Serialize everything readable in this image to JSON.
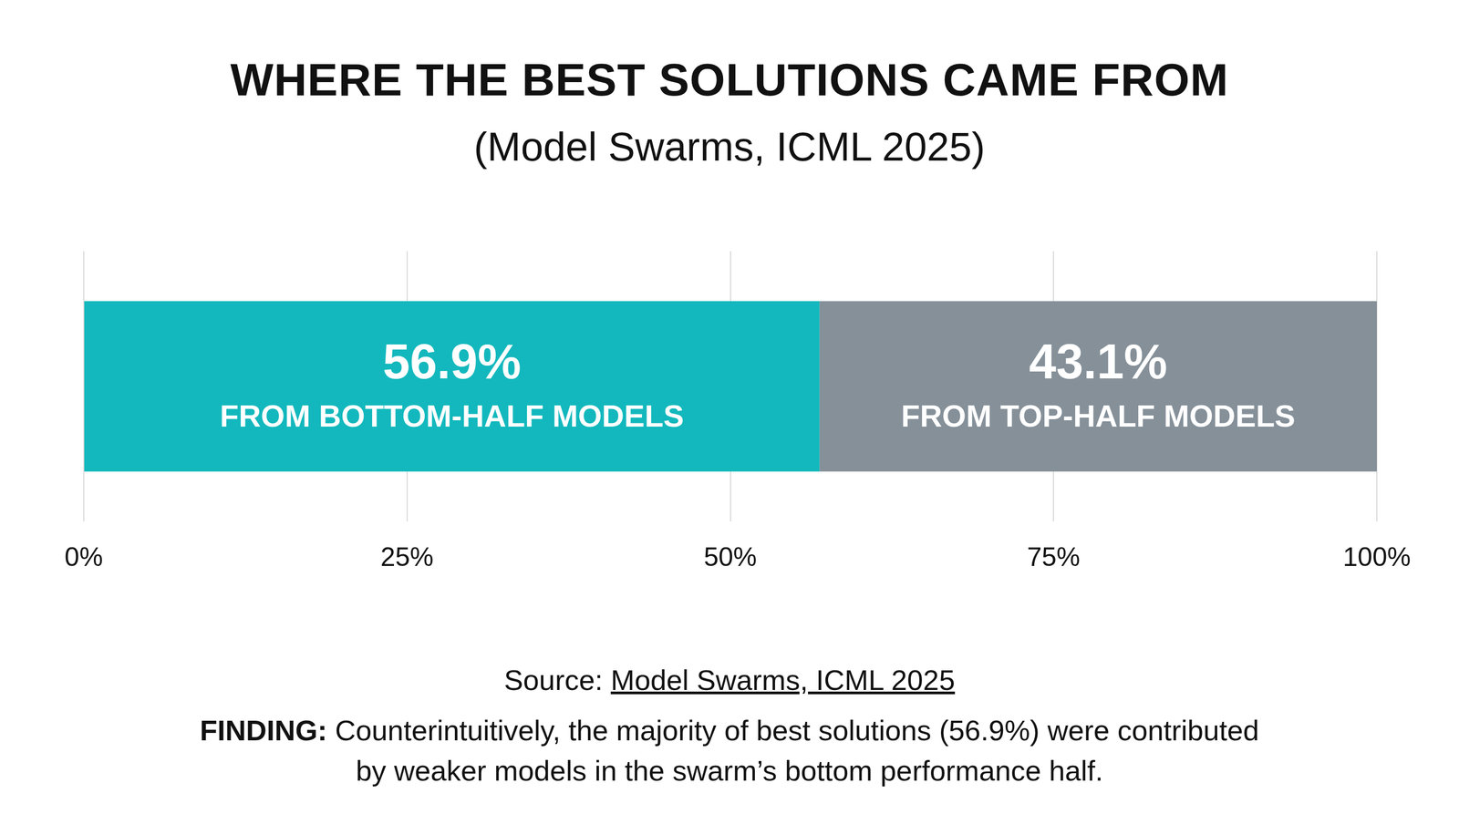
{
  "chart_data": {
    "type": "bar",
    "orientation": "horizontal",
    "stacked": true,
    "title": "WHERE THE BEST SOLUTIONS CAME FROM",
    "subtitle": "(Model Swarms, ICML 2025)",
    "categories": [
      null
    ],
    "series": [
      {
        "name": "FROM BOTTOM-HALF MODELS",
        "color": "#12b8bd",
        "values": [
          56.9
        ],
        "value_labels": [
          "56.9%"
        ]
      },
      {
        "name": "FROM TOP-HALF MODELS",
        "color": "#859099",
        "values": [
          43.1
        ],
        "value_labels": [
          "43.1%"
        ]
      }
    ],
    "xlim": [
      0,
      100
    ],
    "xticks": [
      {
        "value": 0,
        "label": "0%"
      },
      {
        "value": 25,
        "label": "25%"
      },
      {
        "value": 50,
        "label": "50%"
      },
      {
        "value": 75,
        "label": "75%"
      },
      {
        "value": 100,
        "label": "100%"
      }
    ],
    "grid": true,
    "data_labels": true,
    "tick_labels": "x",
    "annotations": [
      {
        "label": "Source:",
        "text": "Model Swarms, ICML 2025"
      },
      {
        "label": "FINDING:",
        "text": "Counterintuitively, the majority of best solutions (56.9%) were contributed by weaker models in the swarm’s bottom performance half."
      }
    ]
  }
}
